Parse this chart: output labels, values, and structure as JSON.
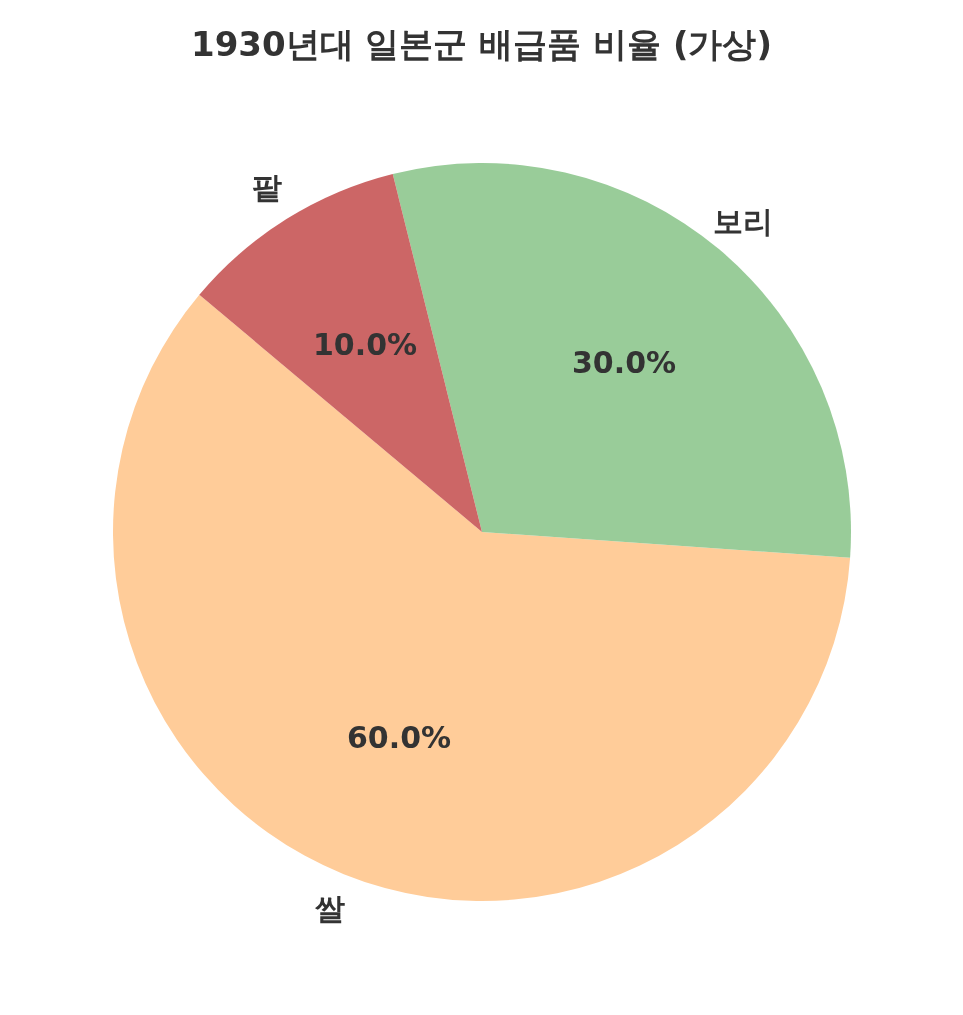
{
  "chart_data": {
    "type": "pie",
    "title": "1930년대 일본군 배급품 비율 (가상)",
    "categories": [
      "쌀",
      "보리",
      "팥"
    ],
    "values": [
      60,
      30,
      10
    ],
    "colors": [
      "#ffcc99",
      "#99cc99",
      "#cc6666"
    ],
    "value_labels": [
      "60.0%",
      "30.0%",
      "10.0%"
    ],
    "legend": false
  }
}
